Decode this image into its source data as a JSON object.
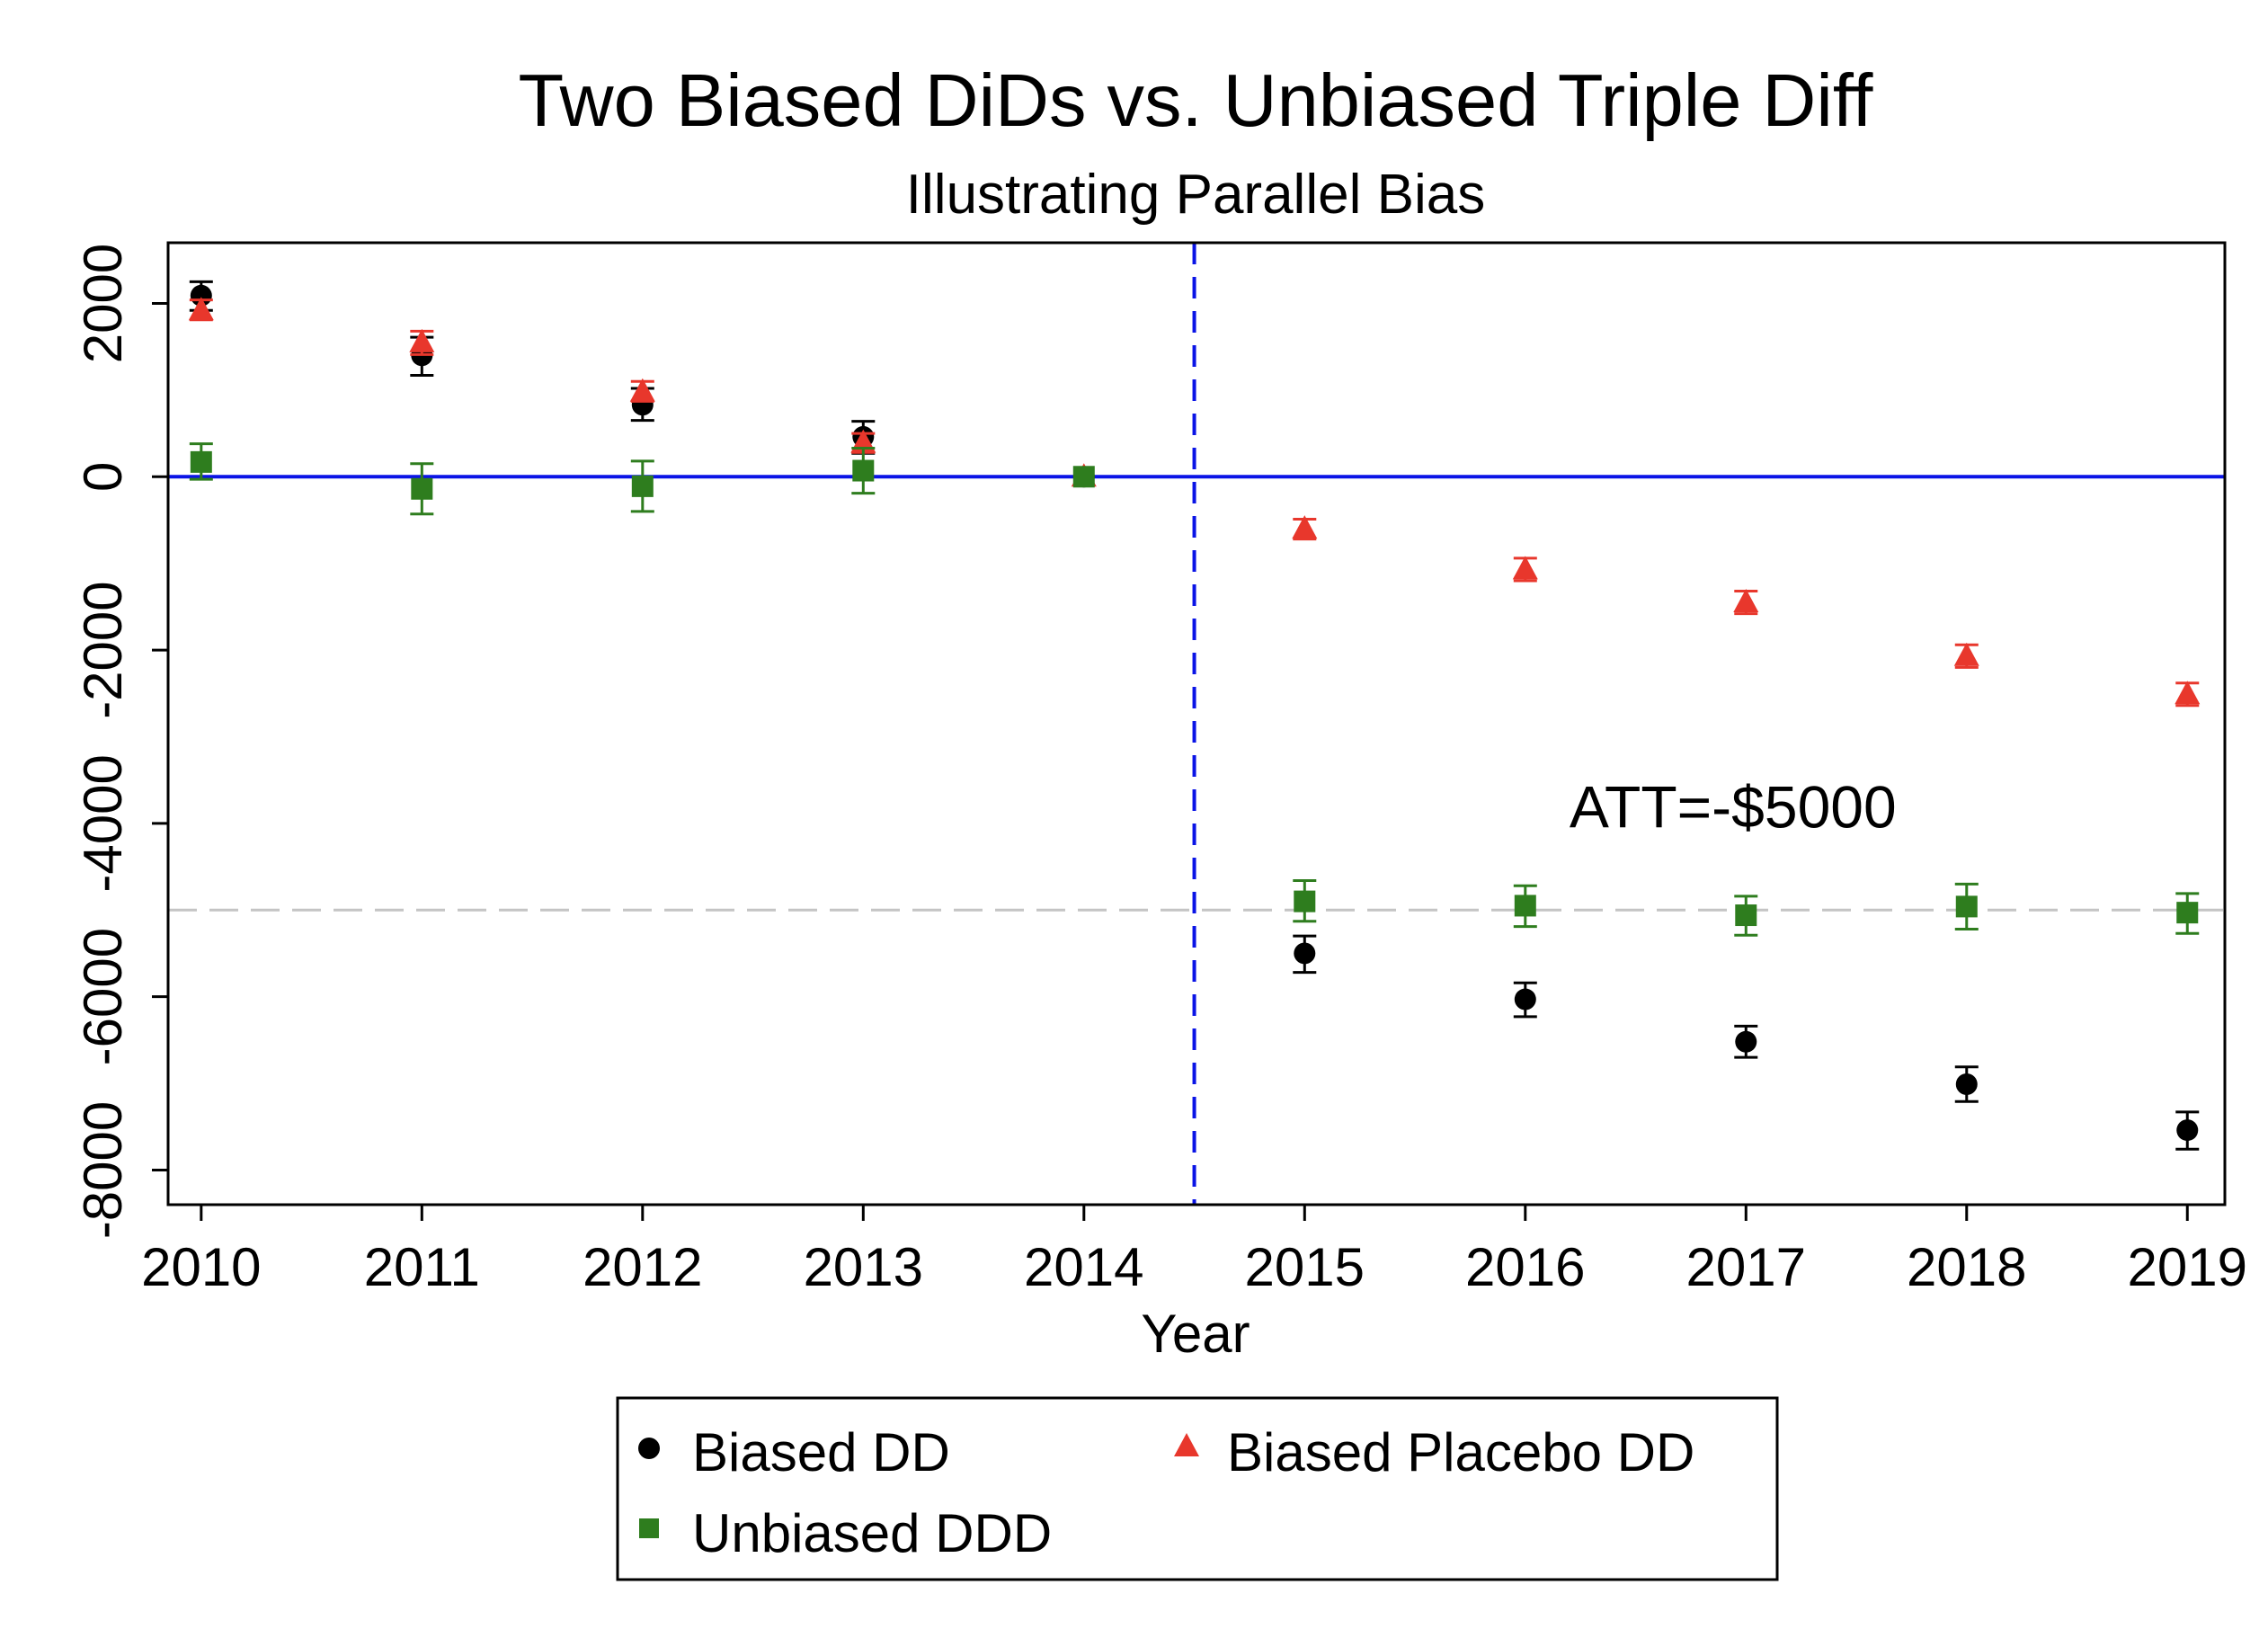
{
  "colors": {
    "biased_dd": "#000000",
    "placebo_dd": "#e8372c",
    "ddd": "#2e7d1e",
    "zero_line": "#0a14e6",
    "treatment_line": "#0a14e6",
    "att_line": "#c4c4c4",
    "frame": "#000000"
  },
  "chart_data": {
    "type": "scatter",
    "title": "Two Biased DiDs vs. Unbiased Triple Diff",
    "subtitle": "Illustrating Parallel Bias",
    "xlabel": "Year",
    "ylabel": "",
    "x": [
      2010,
      2011,
      2012,
      2013,
      2014,
      2015,
      2016,
      2017,
      2018,
      2019
    ],
    "xlim": [
      2009.85,
      2019.17
    ],
    "ylim": [
      -8400,
      2700
    ],
    "x_ticks": [
      2010,
      2011,
      2012,
      2013,
      2014,
      2015,
      2016,
      2017,
      2018,
      2019
    ],
    "x_tick_labels": [
      "2010",
      "2011",
      "2012",
      "2013",
      "2014",
      "2015",
      "2016",
      "2017",
      "2018",
      "2019"
    ],
    "y_ticks": [
      2000,
      0,
      -2000,
      -4000,
      -6000,
      -8000
    ],
    "y_tick_labels": [
      "2000",
      "0",
      "-2000",
      "-4000",
      "-6000",
      "-8000"
    ],
    "grid": false,
    "legend_position": "bottom",
    "reference_lines": {
      "zero": 0,
      "treatment_x": 2014.5,
      "att_y": -5000
    },
    "annotation": {
      "text": "ATT=-$5000",
      "x": 2016.2,
      "y": -4050
    },
    "series": [
      {
        "name": "Biased DD",
        "marker": "circle",
        "color": "#000000",
        "values": [
          2090,
          1400,
          830,
          460,
          0,
          -5500,
          -6030,
          -6520,
          -7010,
          -7540
        ],
        "ci_low": [
          1920,
          1170,
          650,
          270,
          0,
          -5720,
          -6230,
          -6700,
          -7210,
          -7760
        ],
        "ci_high": [
          2250,
          1610,
          1020,
          640,
          0,
          -5300,
          -5840,
          -6340,
          -6810,
          -7330
        ]
      },
      {
        "name": "Biased Placebo DD",
        "marker": "triangle",
        "color": "#e8372c",
        "values": [
          1920,
          1550,
          980,
          390,
          0,
          -600,
          -1070,
          -1450,
          -2070,
          -2510
        ],
        "ci_low": [
          1810,
          1410,
          870,
          280,
          0,
          -720,
          -1200,
          -1580,
          -2200,
          -2640
        ],
        "ci_high": [
          2040,
          1680,
          1100,
          500,
          0,
          -490,
          -940,
          -1320,
          -1940,
          -2380
        ]
      },
      {
        "name": "Unbiased DDD",
        "marker": "square",
        "color": "#2e7d1e",
        "values": [
          170,
          -140,
          -110,
          70,
          0,
          -4900,
          -4950,
          -5060,
          -4960,
          -5030
        ],
        "ci_low": [
          -30,
          -430,
          -400,
          -190,
          0,
          -5130,
          -5190,
          -5290,
          -5220,
          -5270
        ],
        "ci_high": [
          380,
          150,
          180,
          330,
          0,
          -4660,
          -4720,
          -4840,
          -4700,
          -4810
        ]
      }
    ]
  }
}
